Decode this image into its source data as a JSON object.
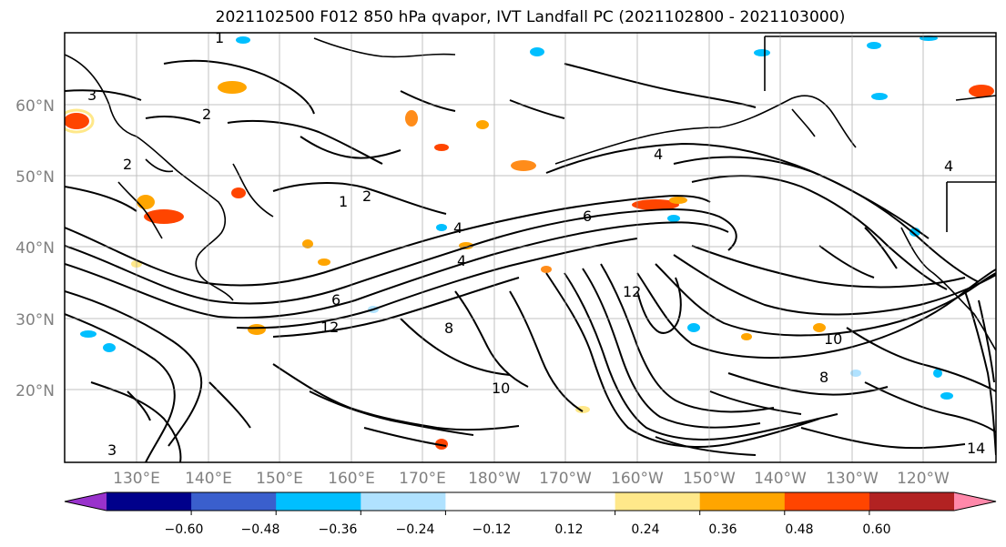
{
  "title": "2021102500 F012 850 hPa qvapor, IVT Landfall PC (2021102800 - 2021103000)",
  "lat_labels": [
    "60°N",
    "50°N",
    "40°N",
    "30°N",
    "20°N"
  ],
  "lon_labels": [
    "130°E",
    "140°E",
    "150°E",
    "160°E",
    "170°E",
    "180°W",
    "170°W",
    "160°W",
    "150°W",
    "140°W",
    "130°W",
    "120°W"
  ],
  "colorbar": {
    "colors": [
      "#9932cc",
      "#00008b",
      "#3a5fcd",
      "#00bfff",
      "#b0e2ff",
      "#ffffff",
      "#ffffff",
      "#ffe88a",
      "#ffa500",
      "#ff4500",
      "#b22222",
      "#ff88aa"
    ],
    "tick_labels": [
      "−0.60",
      "−0.48",
      "−0.36",
      "−0.24",
      "−0.12",
      "0.12",
      "0.24",
      "0.36",
      "0.48",
      "0.60"
    ]
  },
  "contour_labels": [
    "1",
    "2",
    "2",
    "2",
    "3",
    "4",
    "4",
    "4",
    "4",
    "6",
    "6",
    "8",
    "8",
    "10",
    "10",
    "12",
    "12",
    "14",
    "3",
    "1"
  ]
}
